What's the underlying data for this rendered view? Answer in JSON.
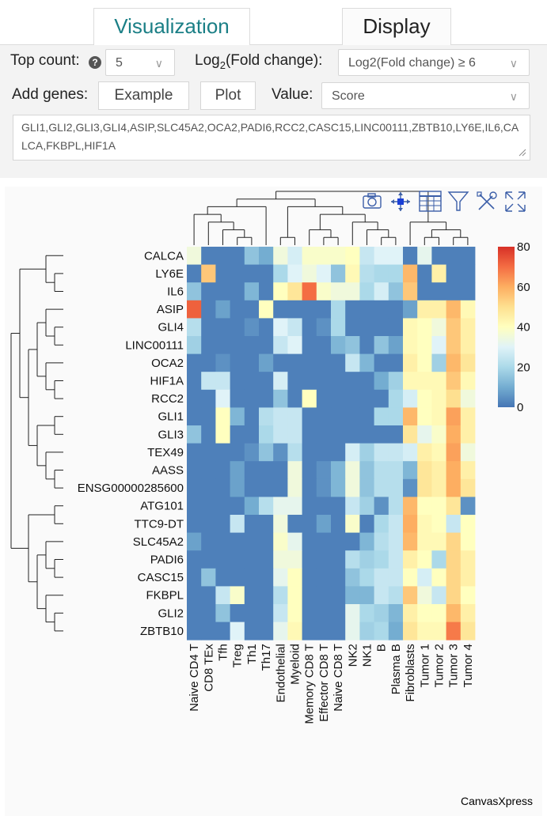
{
  "tabs": [
    {
      "label": "Visualization",
      "active": true
    },
    {
      "label": "Display",
      "active": false
    }
  ],
  "controls": {
    "top_count_label": "Top count:",
    "top_count_value": "5",
    "log2_label_pre": "Log",
    "log2_label_sub": "2",
    "log2_label_post": "(Fold change):",
    "log2_value": "Log2(Fold change) ≥ 6",
    "add_genes_label": "Add genes:",
    "example_button": "Example",
    "plot_button": "Plot",
    "value_label": "Value:",
    "value_value": "Score",
    "genes_text": "GLI1,GLI2,GLI3,GLI4,ASIP,SLC45A2,OCA2,PADI6,RCC2,CASC15,LINC00111,ZBTB10,LY6E,IL6,CALCA,FKBPL,HIF1A"
  },
  "toolbar_icons": [
    "camera-icon",
    "move-icon",
    "data-table-icon",
    "filter-icon",
    "tools-icon",
    "fullscreen-icon"
  ],
  "colors": {
    "scale": [
      "#4575b4",
      "#74add1",
      "#abd9e9",
      "#e0f3f8",
      "#ffffbf",
      "#fee090",
      "#fdae61",
      "#f46d43",
      "#d73027"
    ],
    "accent": "#1b7f86"
  },
  "watermark": "CanvasXpress",
  "chart_data": {
    "type": "heatmap",
    "rows": [
      "CALCA",
      "LY6E",
      "IL6",
      "ASIP",
      "GLI4",
      "LINC00111",
      "OCA2",
      "HIF1A",
      "RCC2",
      "GLI1",
      "GLI3",
      "TEX49",
      "AASS",
      "ENSG00000285600",
      "ATG101",
      "TTC9-DT",
      "SLC45A2",
      "PADI6",
      "CASC15",
      "FKBPL",
      "GLI2",
      "ZBTB10"
    ],
    "columns": [
      "Naive CD4 T",
      "CD8 TEx",
      "Tfh",
      "Treg",
      "Th1",
      "Th17",
      "Endothelial",
      "Myeloid",
      "Memory CD8 T",
      "Effector CD8 T",
      "Naive CD8 T",
      "NK2",
      "NK1",
      "B",
      "Plasma B",
      "Fibroblasts",
      "Tumor 1",
      "Tumor 2",
      "Tumor 3",
      "Tumor 4"
    ],
    "values": [
      [
        35,
        2,
        2,
        2,
        15,
        10,
        35,
        28,
        38,
        38,
        38,
        40,
        25,
        30,
        30,
        2,
        32,
        2,
        2,
        2
      ],
      [
        2,
        55,
        2,
        2,
        2,
        2,
        20,
        30,
        35,
        30,
        15,
        42,
        22,
        20,
        20,
        58,
        2,
        45,
        2,
        2
      ],
      [
        15,
        2,
        2,
        2,
        12,
        2,
        40,
        48,
        70,
        38,
        35,
        35,
        20,
        28,
        15,
        55,
        2,
        2,
        2,
        2
      ],
      [
        72,
        2,
        8,
        2,
        2,
        40,
        2,
        2,
        2,
        2,
        20,
        2,
        2,
        2,
        2,
        8,
        45,
        45,
        58,
        42
      ],
      [
        22,
        2,
        2,
        2,
        5,
        2,
        30,
        25,
        2,
        5,
        20,
        2,
        2,
        2,
        2,
        42,
        40,
        35,
        55,
        45
      ],
      [
        18,
        2,
        2,
        2,
        2,
        2,
        25,
        30,
        2,
        2,
        12,
        15,
        2,
        15,
        8,
        42,
        40,
        30,
        55,
        45
      ],
      [
        2,
        2,
        5,
        2,
        2,
        8,
        2,
        2,
        2,
        2,
        2,
        25,
        12,
        2,
        2,
        45,
        40,
        18,
        58,
        48
      ],
      [
        2,
        25,
        25,
        2,
        2,
        2,
        28,
        2,
        2,
        2,
        2,
        2,
        2,
        10,
        18,
        42,
        42,
        42,
        55,
        42
      ],
      [
        2,
        2,
        30,
        2,
        2,
        2,
        15,
        2,
        40,
        2,
        2,
        2,
        2,
        2,
        20,
        28,
        40,
        42,
        50,
        35
      ],
      [
        2,
        2,
        40,
        12,
        2,
        22,
        25,
        25,
        2,
        2,
        2,
        2,
        2,
        20,
        20,
        58,
        40,
        42,
        62,
        45
      ],
      [
        15,
        2,
        40,
        2,
        2,
        20,
        25,
        25,
        2,
        2,
        2,
        2,
        2,
        2,
        2,
        48,
        32,
        38,
        60,
        45
      ],
      [
        2,
        2,
        2,
        2,
        5,
        15,
        5,
        22,
        2,
        2,
        2,
        28,
        18,
        25,
        25,
        28,
        45,
        42,
        62,
        35
      ],
      [
        2,
        2,
        2,
        8,
        2,
        2,
        2,
        35,
        2,
        5,
        12,
        35,
        15,
        22,
        22,
        12,
        48,
        45,
        60,
        45
      ],
      [
        2,
        2,
        2,
        8,
        2,
        2,
        2,
        35,
        2,
        5,
        12,
        35,
        15,
        22,
        22,
        5,
        48,
        45,
        60,
        48
      ],
      [
        2,
        2,
        2,
        2,
        10,
        22,
        32,
        32,
        2,
        2,
        2,
        25,
        18,
        5,
        22,
        58,
        40,
        40,
        48,
        5
      ],
      [
        2,
        2,
        2,
        25,
        2,
        2,
        35,
        2,
        2,
        8,
        2,
        38,
        2,
        20,
        25,
        60,
        42,
        40,
        25,
        40
      ],
      [
        8,
        2,
        2,
        2,
        2,
        2,
        38,
        32,
        2,
        2,
        2,
        2,
        12,
        22,
        25,
        58,
        42,
        42,
        52,
        40
      ],
      [
        2,
        2,
        2,
        2,
        2,
        2,
        35,
        35,
        2,
        2,
        2,
        22,
        18,
        20,
        25,
        45,
        40,
        20,
        52,
        45
      ],
      [
        2,
        15,
        2,
        2,
        2,
        2,
        32,
        40,
        2,
        2,
        2,
        15,
        20,
        25,
        25,
        40,
        28,
        40,
        52,
        45
      ],
      [
        2,
        2,
        25,
        38,
        2,
        2,
        22,
        40,
        2,
        2,
        2,
        12,
        12,
        25,
        22,
        55,
        35,
        25,
        52,
        40
      ],
      [
        2,
        2,
        15,
        2,
        2,
        2,
        25,
        40,
        2,
        2,
        2,
        32,
        20,
        18,
        12,
        45,
        40,
        40,
        58,
        45
      ],
      [
        2,
        2,
        2,
        30,
        2,
        2,
        32,
        42,
        2,
        2,
        2,
        32,
        18,
        20,
        10,
        48,
        42,
        42,
        68,
        48
      ]
    ],
    "legend_ticks": [
      0,
      20,
      40,
      60,
      80
    ],
    "value_range": [
      0,
      80
    ]
  }
}
